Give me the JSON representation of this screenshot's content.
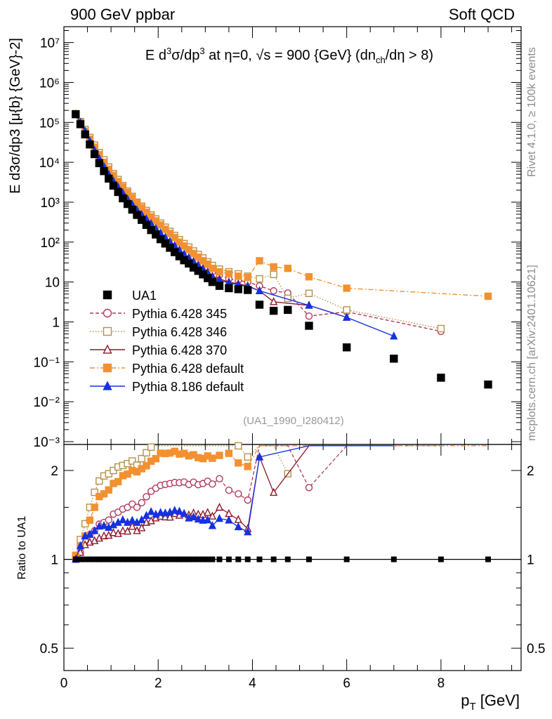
{
  "header": {
    "left": "900 GeV ppbar",
    "right": "Soft QCD"
  },
  "side_notes": {
    "rivet": "Rivet 4.1.0, ≥ 100k events",
    "mcplots": "mcplots.cern.ch [arXiv:2401.10621]"
  },
  "chart_data": [
    {
      "type": "scatter",
      "panel": "main",
      "title": "E d³σ/dp³ at η=0, √s = 900 {GeV} (dn_ch/dη > 8)",
      "title_parts": {
        "a": "E  d",
        "b": "σ/dp",
        "c": " at η=0, √s = 900 {GeV} (dn",
        "d": "/dη > 8)",
        "sup3": "3",
        "sub_ch": "ch"
      },
      "ylabel": "E d³σ/dp³ [μ{b} {GeV}⁻²]",
      "ylabel_text": "E d3σ/dp3 [μ{b} {GeV}-2]",
      "analysis_label": "(UA1_1990_I280412)",
      "yscale": "log",
      "ylim": [
        0.00085,
        25000000
      ],
      "xlim": [
        0,
        9.7
      ],
      "y_ticks": [
        {
          "value": 0.001,
          "label": "10⁻³"
        },
        {
          "value": 0.01,
          "label": "10⁻²"
        },
        {
          "value": 0.1,
          "label": "10⁻¹"
        },
        {
          "value": 1,
          "label": "1"
        },
        {
          "value": 10,
          "label": "10"
        },
        {
          "value": 100,
          "label": "10²"
        },
        {
          "value": 1000,
          "label": "10³"
        },
        {
          "value": 10000,
          "label": "10⁴"
        },
        {
          "value": 100000,
          "label": "10⁵"
        },
        {
          "value": 1000000,
          "label": "10⁶"
        },
        {
          "value": 10000000,
          "label": "10⁷"
        }
      ],
      "legend_position": "lower-left",
      "series": [
        {
          "name": "UA1",
          "color": "#000000",
          "marker": "square-filled",
          "line": "none",
          "x": [
            0.25,
            0.35,
            0.45,
            0.55,
            0.65,
            0.75,
            0.85,
            0.95,
            1.05,
            1.15,
            1.25,
            1.35,
            1.45,
            1.55,
            1.65,
            1.75,
            1.85,
            1.95,
            2.05,
            2.15,
            2.25,
            2.35,
            2.45,
            2.55,
            2.65,
            2.75,
            2.85,
            2.95,
            3.05,
            3.15,
            3.3,
            3.5,
            3.7,
            3.9,
            4.15,
            4.45,
            4.75,
            5.2,
            6.0,
            7.0,
            8.0,
            9.0
          ],
          "y": [
            160000,
            90000,
            50000,
            28000,
            16000,
            9500,
            6000,
            3900,
            2600,
            1800,
            1250,
            900,
            650,
            480,
            360,
            270,
            200,
            155,
            118,
            92,
            72,
            56,
            44,
            35,
            29,
            23,
            19,
            15.5,
            12.5,
            10,
            8,
            7,
            6.6,
            6.3,
            2.7,
            1.9,
            2.0,
            0.8,
            0.23,
            0.12,
            0.04,
            0.027
          ]
        },
        {
          "name": "Pythia 6.428 345",
          "color": "#b03a5b",
          "marker": "circle-open",
          "line": "dashed",
          "x": [
            0.25,
            0.35,
            0.45,
            0.55,
            0.65,
            0.75,
            0.85,
            0.95,
            1.05,
            1.15,
            1.25,
            1.35,
            1.45,
            1.55,
            1.65,
            1.75,
            1.85,
            1.95,
            2.05,
            2.15,
            2.25,
            2.35,
            2.45,
            2.55,
            2.65,
            2.75,
            2.85,
            2.95,
            3.05,
            3.15,
            3.3,
            3.5,
            3.7,
            3.9,
            4.15,
            4.45,
            4.75,
            5.2,
            6.0,
            8.0
          ],
          "y": [
            160000,
            95000,
            58000,
            34000,
            20000,
            12500,
            8000,
            5300,
            3700,
            2600,
            1850,
            1350,
            1000,
            720,
            560,
            440,
            340,
            270,
            210,
            165,
            130,
            102,
            80,
            64,
            52,
            42,
            34,
            28,
            23,
            18,
            15,
            12,
            11,
            10,
            8,
            6,
            5.3,
            1.4,
            1.8,
            0.58
          ]
        },
        {
          "name": "Pythia 6.428 346",
          "color": "#b59149",
          "marker": "square-open",
          "line": "dotted",
          "x": [
            0.25,
            0.35,
            0.45,
            0.55,
            0.65,
            0.75,
            0.85,
            0.95,
            1.05,
            1.15,
            1.25,
            1.35,
            1.45,
            1.55,
            1.65,
            1.75,
            1.85,
            1.95,
            2.05,
            2.15,
            2.25,
            2.35,
            2.45,
            2.55,
            2.65,
            2.75,
            2.85,
            2.95,
            3.05,
            3.15,
            3.3,
            3.5,
            3.7,
            3.9,
            4.15,
            4.45,
            4.75,
            5.2,
            6.0,
            8.0
          ],
          "y": [
            165000,
            105000,
            66000,
            42000,
            27000,
            17500,
            11500,
            7600,
            5200,
            3700,
            2600,
            1900,
            1400,
            1000,
            790,
            620,
            480,
            380,
            300,
            236,
            185,
            146,
            115,
            92,
            75,
            60,
            49,
            40,
            32,
            26,
            21,
            18,
            16,
            14,
            12,
            15.5,
            3.9,
            5.2,
            2.0,
            0.68
          ]
        },
        {
          "name": "Pythia 6.428 370",
          "color": "#8b1a2b",
          "marker": "triangle-open",
          "line": "solid",
          "x": [
            0.25,
            0.35,
            0.45,
            0.55,
            0.65,
            0.75,
            0.85,
            0.95,
            1.05,
            1.15,
            1.25,
            1.35,
            1.45,
            1.55,
            1.65,
            1.75,
            1.85,
            1.95,
            2.05,
            2.15,
            2.25,
            2.35,
            2.45,
            2.55,
            2.65,
            2.75,
            2.85,
            2.95,
            3.05,
            3.15,
            3.3,
            3.5,
            3.7,
            3.9,
            4.15,
            4.45,
            5.2,
            6.0
          ],
          "y": [
            160000,
            95000,
            56000,
            32000,
            18500,
            11200,
            7200,
            4700,
            3200,
            2200,
            1560,
            1120,
            840,
            600,
            460,
            360,
            270,
            214,
            165,
            128,
            100,
            80,
            62,
            50,
            41,
            33,
            27,
            22,
            18,
            14,
            12,
            10,
            9,
            8,
            6,
            3.2,
            2.6,
            1.3
          ]
        },
        {
          "name": "Pythia 6.428 default",
          "color": "#f39130",
          "marker": "square-filled",
          "line": "dashdot",
          "x": [
            0.25,
            0.35,
            0.45,
            0.55,
            0.65,
            0.75,
            0.85,
            0.95,
            1.05,
            1.15,
            1.25,
            1.35,
            1.45,
            1.55,
            1.65,
            1.75,
            1.85,
            1.95,
            2.05,
            2.15,
            2.25,
            2.35,
            2.45,
            2.55,
            2.65,
            2.75,
            2.85,
            2.95,
            3.05,
            3.15,
            3.3,
            3.5,
            3.7,
            3.9,
            4.15,
            4.45,
            4.75,
            5.2,
            6.0,
            9.0
          ],
          "y": [
            165000,
            100000,
            60000,
            38000,
            24000,
            15500,
            10000,
            6700,
            4700,
            3300,
            2400,
            1750,
            1300,
            950,
            730,
            560,
            430,
            340,
            270,
            210,
            165,
            130,
            100,
            80,
            65,
            52,
            42,
            34,
            28,
            22,
            18,
            16,
            14,
            13,
            34,
            24,
            22,
            13.5,
            7,
            4.4
          ]
        },
        {
          "name": "Pythia 8.186 default",
          "color": "#1631e0",
          "marker": "triangle-filled",
          "line": "solid",
          "x": [
            0.25,
            0.35,
            0.45,
            0.55,
            0.65,
            0.75,
            0.85,
            0.95,
            1.05,
            1.15,
            1.25,
            1.35,
            1.45,
            1.55,
            1.65,
            1.75,
            1.85,
            1.95,
            2.05,
            2.15,
            2.25,
            2.35,
            2.45,
            2.55,
            2.65,
            2.75,
            2.85,
            2.95,
            3.05,
            3.15,
            3.3,
            3.5,
            3.7,
            3.9,
            4.15,
            5.2,
            6.0,
            7.0
          ],
          "y": [
            160000,
            100000,
            60000,
            34000,
            20000,
            12300,
            7800,
            5000,
            3400,
            2400,
            1700,
            1200,
            880,
            640,
            490,
            380,
            290,
            220,
            170,
            132,
            104,
            82,
            64,
            50,
            40,
            32,
            26,
            21,
            17,
            13,
            11,
            9.5,
            8.5,
            7.8,
            6,
            2.6,
            1.3,
            0.44
          ]
        }
      ]
    },
    {
      "type": "scatter",
      "panel": "ratio",
      "ylabel": "Ratio to UA1",
      "xlabel": "p_T [GeV]",
      "xlabel_parts": {
        "p": "p",
        "sub": "T",
        "unit": " [GeV]"
      },
      "yscale": "log",
      "ylim": [
        0.42,
        2.45
      ],
      "xlim": [
        0,
        9.7
      ],
      "x_ticks": [
        {
          "value": 0,
          "label": "0"
        },
        {
          "value": 2,
          "label": "2"
        },
        {
          "value": 4,
          "label": "4"
        },
        {
          "value": 6,
          "label": "6"
        },
        {
          "value": 8,
          "label": "8"
        }
      ],
      "y_ticks": [
        {
          "value": 0.5,
          "label": "0.5"
        },
        {
          "value": 1,
          "label": "1"
        },
        {
          "value": 2,
          "label": "2"
        }
      ],
      "reference_line": 1.0
    }
  ]
}
